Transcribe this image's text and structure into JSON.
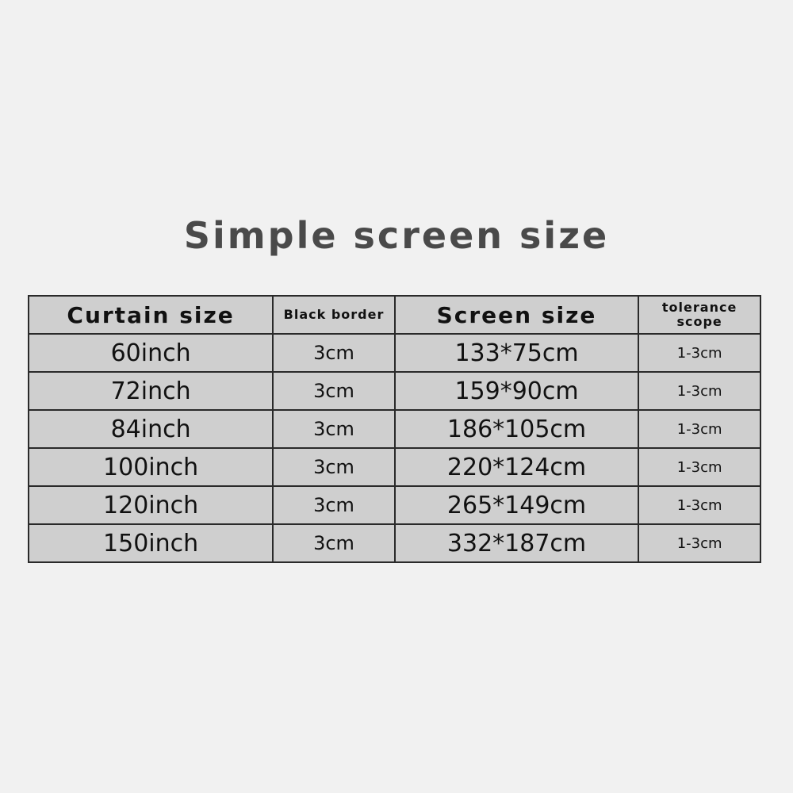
{
  "title": "Simple screen size",
  "table": {
    "headers": [
      "Curtain size",
      "Black border",
      "Screen size",
      "tolerance scope"
    ],
    "rows": [
      [
        "60inch",
        "3cm",
        "133*75cm",
        "1-3cm"
      ],
      [
        "72inch",
        "3cm",
        "159*90cm",
        "1-3cm"
      ],
      [
        "84inch",
        "3cm",
        "186*105cm",
        "1-3cm"
      ],
      [
        "100inch",
        "3cm",
        "220*124cm",
        "1-3cm"
      ],
      [
        "120inch",
        "3cm",
        "265*149cm",
        "1-3cm"
      ],
      [
        "150inch",
        "3cm",
        "332*187cm",
        "1-3cm"
      ]
    ]
  }
}
